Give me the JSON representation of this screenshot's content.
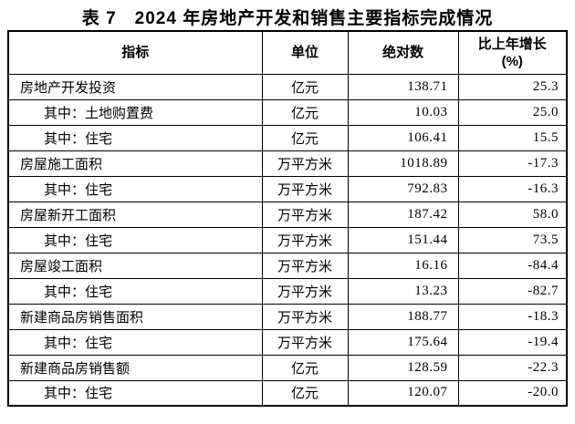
{
  "title": "表 7　2024 年房地产开发和销售主要指标完成情况",
  "table": {
    "headers": {
      "indicator": "指标",
      "unit": "单位",
      "absolute": "绝对数",
      "growth_line1": "比上年增长",
      "growth_line2": "(%)"
    },
    "rows": [
      {
        "indicator": "房地产开发投资",
        "unit": "亿元",
        "absolute": "138.71",
        "growth": "25.3"
      },
      {
        "indicator": "其中：土地购置费",
        "unit": "亿元",
        "absolute": "10.03",
        "growth": "25.0"
      },
      {
        "indicator": "其中：住宅",
        "unit": "亿元",
        "absolute": "106.41",
        "growth": "15.5"
      },
      {
        "indicator": "房屋施工面积",
        "unit": "万平方米",
        "absolute": "1018.89",
        "growth": "-17.3"
      },
      {
        "indicator": "其中：住宅",
        "unit": "万平方米",
        "absolute": "792.83",
        "growth": "-16.3"
      },
      {
        "indicator": "房屋新开工面积",
        "unit": "万平方米",
        "absolute": "187.42",
        "growth": "58.0"
      },
      {
        "indicator": "其中：住宅",
        "unit": "万平方米",
        "absolute": "151.44",
        "growth": "73.5"
      },
      {
        "indicator": "房屋竣工面积",
        "unit": "万平方米",
        "absolute": "16.16",
        "growth": "-84.4"
      },
      {
        "indicator": "其中：住宅",
        "unit": "万平方米",
        "absolute": "13.23",
        "growth": "-82.7"
      },
      {
        "indicator": "新建商品房销售面积",
        "unit": "万平方米",
        "absolute": "188.77",
        "growth": "-18.3"
      },
      {
        "indicator": "其中：住宅",
        "unit": "万平方米",
        "absolute": "175.64",
        "growth": "-19.4"
      },
      {
        "indicator": "新建商品房销售额",
        "unit": "亿元",
        "absolute": "128.59",
        "growth": "-22.3"
      },
      {
        "indicator": "其中：住宅",
        "unit": "亿元",
        "absolute": "120.07",
        "growth": "-20.0"
      }
    ]
  },
  "colors": {
    "text": "#000000",
    "background": "#ffffff",
    "border": "#000000"
  }
}
